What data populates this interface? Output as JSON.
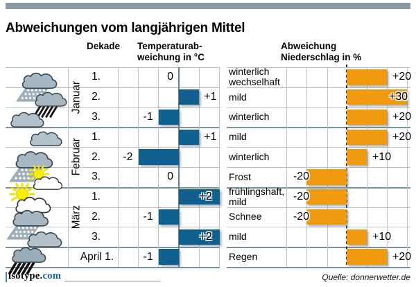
{
  "title": "Abweichungen vom langjährigen Mittel",
  "header": {
    "dekade": "Dekade",
    "temp": "Temperaturab-\nweichung in °C",
    "precip": "Abweichung\nNiederschlag in %"
  },
  "months": [
    {
      "name": "Januar"
    },
    {
      "name": "Februar"
    },
    {
      "name": "März"
    }
  ],
  "april_label": "April 1.",
  "rows": [
    {
      "month": "Januar",
      "decade": "1.",
      "icon": "cloud-snow",
      "temp": 0,
      "temp_label": "0",
      "precip": 20,
      "precip_label": "+20",
      "desc": "winterlich\nwechselhaft"
    },
    {
      "month": "Januar",
      "decade": "2.",
      "icon": "cloud-rain",
      "temp": 1,
      "temp_label": "+1",
      "precip": 30,
      "precip_label": "+30",
      "desc": "mild"
    },
    {
      "month": "Januar",
      "decade": "3.",
      "icon": "cloud",
      "temp": -1,
      "temp_label": "-1",
      "precip": 20,
      "precip_label": "+20",
      "desc": "winterlich"
    },
    {
      "month": "Februar",
      "decade": "1.",
      "icon": "cloud",
      "temp": 1,
      "temp_label": "+1",
      "precip": 20,
      "precip_label": "+20",
      "desc": "mild"
    },
    {
      "month": "Februar",
      "decade": "2.",
      "icon": "cloud-snow",
      "temp": -2,
      "temp_label": "-2",
      "precip": 10,
      "precip_label": "+10",
      "desc": "winterlich"
    },
    {
      "month": "Februar",
      "decade": "3.",
      "icon": "sun-cloud",
      "temp": 0,
      "temp_label": "0",
      "precip": -20,
      "precip_label": "-20",
      "desc": "Frost"
    },
    {
      "month": "März",
      "decade": "1.",
      "icon": "sun-cloud",
      "temp": 2,
      "temp_label": "+2",
      "precip": -20,
      "precip_label": "-20",
      "desc": "frühlingshaft,\nmild"
    },
    {
      "month": "März",
      "decade": "2.",
      "icon": "cloud-snow",
      "temp": -1,
      "temp_label": "-1",
      "precip": -20,
      "precip_label": "-20",
      "desc": "Schnee"
    },
    {
      "month": "März",
      "decade": "3.",
      "icon": "cloud",
      "temp": 2,
      "temp_label": "+2",
      "precip": 10,
      "precip_label": "+10",
      "desc": "mild"
    },
    {
      "month": "April",
      "decade": "",
      "icon": "cloud-rain-heavy",
      "temp": -1,
      "temp_label": "-1",
      "precip": 20,
      "precip_label": "+20",
      "desc": "Regen"
    }
  ],
  "footer": {
    "logo_black": "isotype.",
    "logo_blue": "com",
    "source": "Quelle: donnerwetter.de"
  },
  "colors": {
    "temp_bar": "#0f608e",
    "precip_bar": "#f19a10",
    "grid_light": "#b7c4cd",
    "grid_dark": "#7e929e",
    "temp_axis": "#68808e",
    "topbar": "#8a98a4",
    "logo_blue": "#1565ae"
  },
  "chart_data": {
    "type": "bar",
    "orientation": "horizontal",
    "title": "Abweichungen vom langjährigen Mittel",
    "categories": [
      "Januar 1.",
      "Januar 2.",
      "Januar 3.",
      "Februar 1.",
      "Februar 2.",
      "Februar 3.",
      "März 1.",
      "März 2.",
      "März 3.",
      "April 1."
    ],
    "series": [
      {
        "name": "Temperaturabweichung in °C",
        "values": [
          0,
          1,
          -1,
          1,
          -2,
          0,
          2,
          -1,
          2,
          -1
        ],
        "xlim": [
          -3,
          2
        ],
        "color": "#0f608e"
      },
      {
        "name": "Abweichung Niederschlag in %",
        "values": [
          20,
          30,
          20,
          20,
          10,
          -20,
          -20,
          -20,
          10,
          20
        ],
        "xlim": [
          -30,
          30
        ],
        "color": "#f19a10"
      }
    ],
    "annotations": [
      "winterlich wechselhaft",
      "mild",
      "winterlich",
      "mild",
      "winterlich",
      "Frost",
      "frühlingshaft, mild",
      "Schnee",
      "mild",
      "Regen"
    ],
    "weather_icons": [
      "cloud-snow",
      "cloud-rain",
      "cloud",
      "cloud",
      "cloud-snow",
      "sun-cloud",
      "sun-cloud",
      "cloud-snow",
      "cloud",
      "cloud-rain-heavy"
    ],
    "grid": true,
    "legend_position": "none",
    "source": "Quelle: donnerwetter.de"
  }
}
